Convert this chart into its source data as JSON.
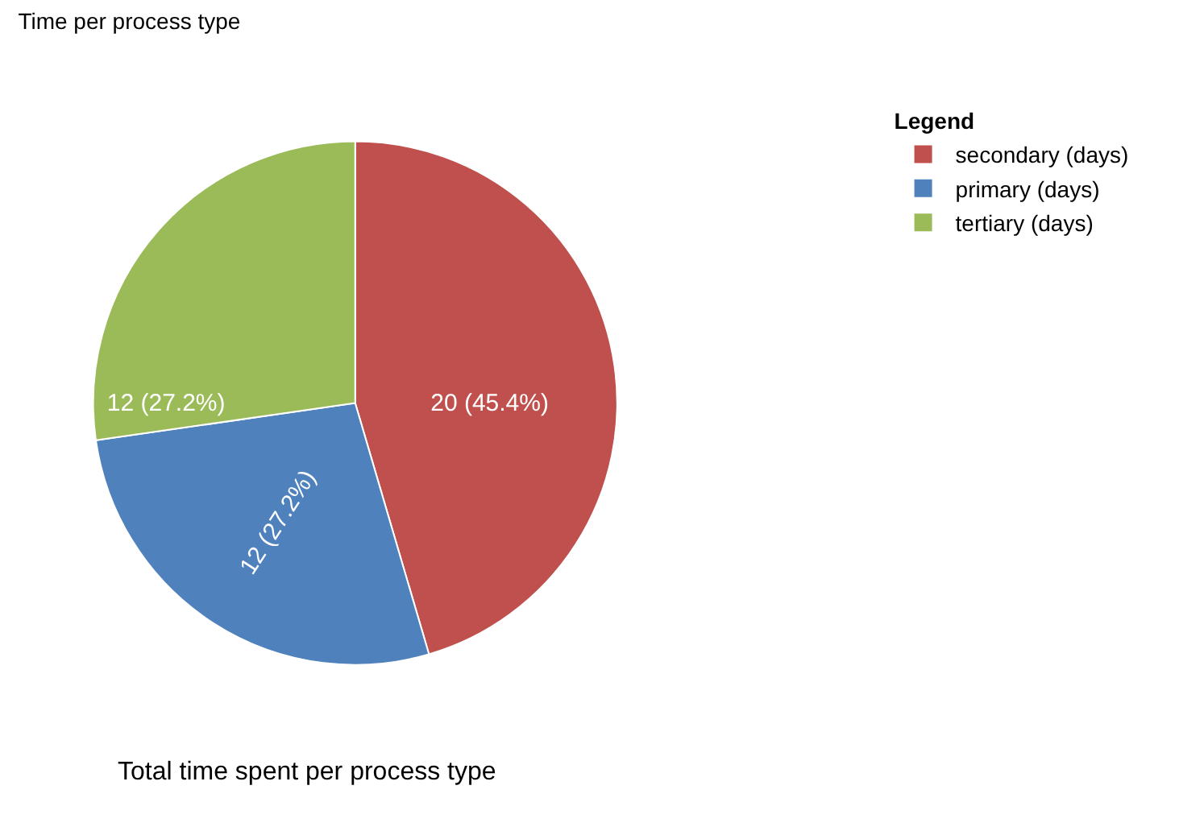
{
  "chart_data": {
    "type": "pie",
    "title": "Time per process type",
    "subtitle": "Total time spent per process type",
    "legend_title": "Legend",
    "categories": [
      "secondary (days)",
      "primary (days)",
      "tertiary (days)"
    ],
    "values": [
      20,
      12,
      12
    ],
    "colors": [
      "#c0504d",
      "#4f81bd",
      "#9bbb59"
    ],
    "value_labels": [
      "20 (45.4%)",
      "12 (27.2%)",
      "12 (27.2%)"
    ],
    "legend": "top right"
  }
}
